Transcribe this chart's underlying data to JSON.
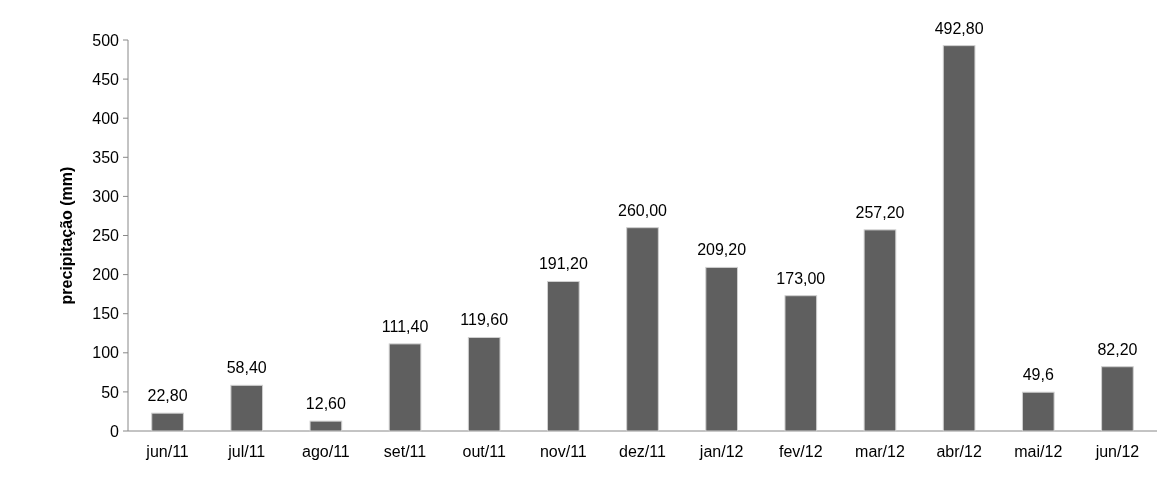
{
  "chart_data": {
    "type": "bar",
    "ylabel": "precipitação (mm)",
    "categories": [
      "jun/11",
      "jul/11",
      "ago/11",
      "set/11",
      "out/11",
      "nov/11",
      "dez/11",
      "jan/12",
      "fev/12",
      "mar/12",
      "abr/12",
      "mai/12",
      "jun/12"
    ],
    "values": [
      22.8,
      58.4,
      12.6,
      111.4,
      119.6,
      191.2,
      260,
      209.2,
      173,
      257.2,
      492.8,
      49.6,
      82.2
    ],
    "value_labels": [
      "22,80",
      "58,40",
      "12,60",
      "111,40",
      "119,60",
      "191,20",
      "260,00",
      "209,20",
      "173,00",
      "257,20",
      "492,80",
      "49,6",
      "82,20"
    ],
    "color": "#5f5f5f",
    "ylim": [
      0,
      500
    ],
    "yticks": [
      0,
      50,
      100,
      150,
      200,
      250,
      300,
      350,
      400,
      450,
      500
    ]
  }
}
